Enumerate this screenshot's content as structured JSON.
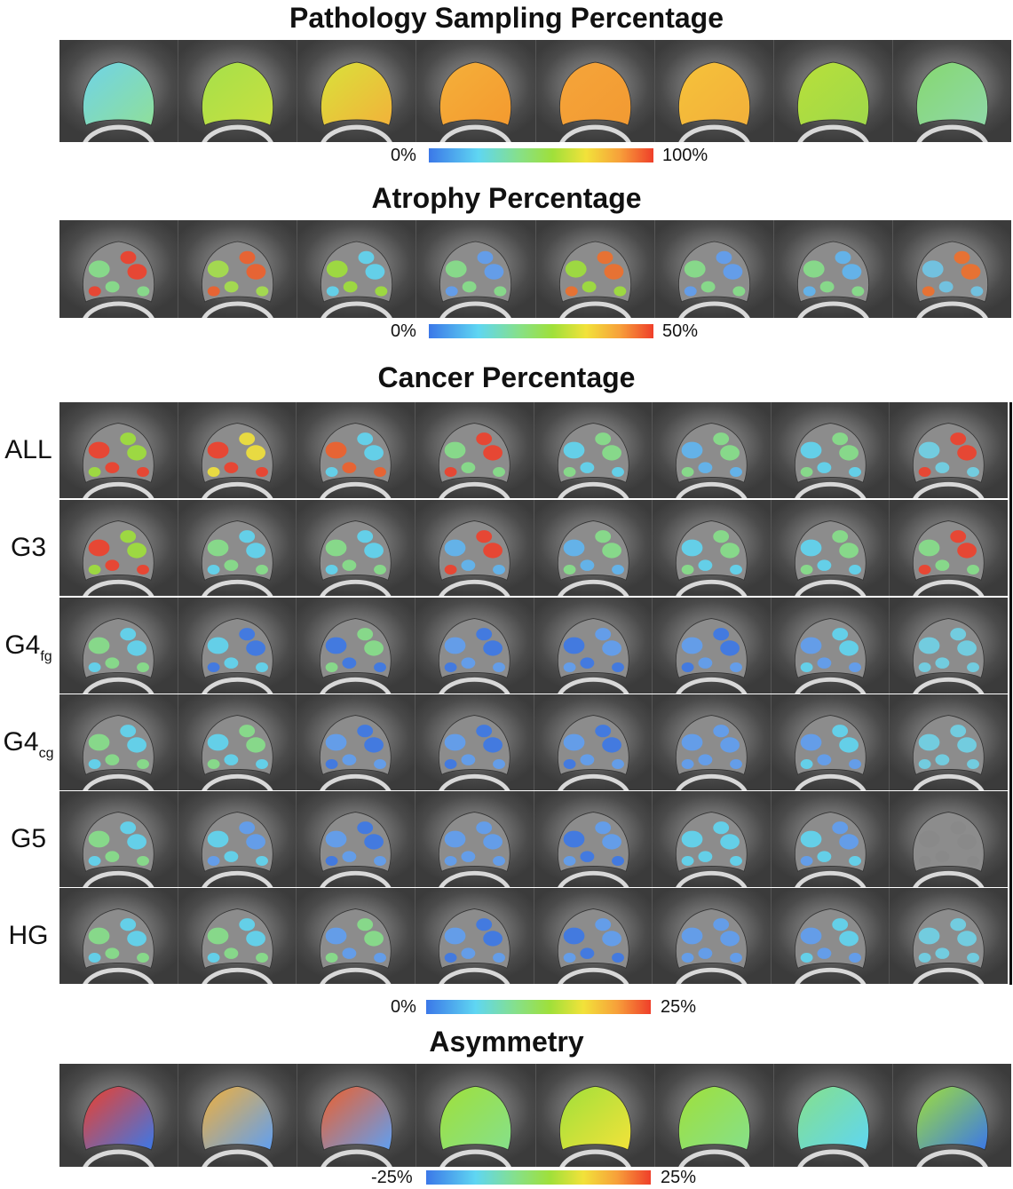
{
  "titles": {
    "pathology": "Pathology Sampling Percentage",
    "atrophy": "Atrophy Percentage",
    "cancer": "Cancer Percentage",
    "asymmetry": "Asymmetry"
  },
  "colorbars": {
    "pathology": {
      "min": "0%",
      "max": "100%"
    },
    "atrophy": {
      "min": "0%",
      "max": "50%"
    },
    "cancer": {
      "min": "0%",
      "max": "25%"
    },
    "asymmetry": {
      "min": "-25%",
      "max": "25%"
    }
  },
  "cancer_rows": [
    {
      "label": "ALL",
      "sub": ""
    },
    {
      "label": "G3",
      "sub": ""
    },
    {
      "label": "G4",
      "sub": "fg"
    },
    {
      "label": "G4",
      "sub": "cg"
    },
    {
      "label": "G5",
      "sub": ""
    },
    {
      "label": "HG",
      "sub": ""
    }
  ],
  "colors": {
    "blue": "#3b78e8",
    "cyan": "#5fd6f2",
    "green": "#86e08a",
    "lime": "#9fe03a",
    "yellow": "#f2e23a",
    "orange": "#f7a03a",
    "red": "#ef3f2a"
  },
  "maps": {
    "pathology": [
      [
        "#6fd3e8",
        "#8fdf9a"
      ],
      [
        "#a5e04a",
        "#c8e040"
      ],
      [
        "#d9e23a",
        "#f2b23a"
      ],
      [
        "#f4b03a",
        "#f49a2f"
      ],
      [
        "#f5a53a",
        "#f29a32"
      ],
      [
        "#f6c23a",
        "#f2b03a"
      ],
      [
        "#b8e03a",
        "#9fd84a"
      ],
      [
        "#86d870",
        "#8fd8a8"
      ]
    ],
    "atrophy": [
      [
        "#86e08a",
        "#ef3f2a"
      ],
      [
        "#a5e04a",
        "#ef5f2a"
      ],
      [
        "#9fe03a",
        "#5fd6f2"
      ],
      [
        "#86e08a",
        "#5f9ff2"
      ],
      [
        "#9fe03a",
        "#ef6f2a"
      ],
      [
        "#86e08a",
        "#5f9ff2"
      ],
      [
        "#86e08a",
        "#5fb6f2"
      ],
      [
        "#6fc6e8",
        "#ef6f2a"
      ]
    ],
    "cancer": [
      [
        [
          "#ef3f2a",
          "#9fe03a"
        ],
        [
          "#ef3f2a",
          "#f2e23a"
        ],
        [
          "#ef5f2a",
          "#5fd6f2"
        ],
        [
          "#86e08a",
          "#ef3f2a"
        ],
        [
          "#5fd6f2",
          "#86e08a"
        ],
        [
          "#5fb6f2",
          "#86e08a"
        ],
        [
          "#5fd6f2",
          "#86e08a"
        ],
        [
          "#6fd3e8",
          "#ef3f2a"
        ]
      ],
      [
        [
          "#ef3f2a",
          "#9fe03a"
        ],
        [
          "#86e08a",
          "#5fd6f2"
        ],
        [
          "#86e08a",
          "#5fd6f2"
        ],
        [
          "#5fb6f2",
          "#ef3f2a"
        ],
        [
          "#5fb6f2",
          "#86e08a"
        ],
        [
          "#5fd6f2",
          "#86e08a"
        ],
        [
          "#5fd6f2",
          "#86e08a"
        ],
        [
          "#86e08a",
          "#ef3f2a"
        ]
      ],
      [
        [
          "#86e08a",
          "#5fd6f2"
        ],
        [
          "#5fd6f2",
          "#3b78e8"
        ],
        [
          "#3b78e8",
          "#86e08a"
        ],
        [
          "#5f9ff2",
          "#3b78e8"
        ],
        [
          "#3b78e8",
          "#5f9ff2"
        ],
        [
          "#5f9ff2",
          "#3b78e8"
        ],
        [
          "#5f9ff2",
          "#5fd6f2"
        ],
        [
          "#6fd3e8",
          "#6fd3e8"
        ]
      ],
      [
        [
          "#86e08a",
          "#5fd6f2"
        ],
        [
          "#5fd6f2",
          "#86e08a"
        ],
        [
          "#5f9ff2",
          "#3b78e8"
        ],
        [
          "#5f9ff2",
          "#3b78e8"
        ],
        [
          "#5f9ff2",
          "#3b78e8"
        ],
        [
          "#5f9ff2",
          "#5f9ff2"
        ],
        [
          "#5f9ff2",
          "#5fd6f2"
        ],
        [
          "#6fd3e8",
          "#6fd3e8"
        ]
      ],
      [
        [
          "#86e08a",
          "#5fd6f2"
        ],
        [
          "#5fd6f2",
          "#5f9ff2"
        ],
        [
          "#5f9ff2",
          "#3b78e8"
        ],
        [
          "#5f9ff2",
          "#5f9ff2"
        ],
        [
          "#3b78e8",
          "#5f9ff2"
        ],
        [
          "#5fd6f2",
          "#5fd6f2"
        ],
        [
          "#5fd6f2",
          "#5f9ff2"
        ],
        [
          "#888888",
          "#888888"
        ]
      ],
      [
        [
          "#86e08a",
          "#5fd6f2"
        ],
        [
          "#86e08a",
          "#5fd6f2"
        ],
        [
          "#5f9ff2",
          "#86e08a"
        ],
        [
          "#5f9ff2",
          "#3b78e8"
        ],
        [
          "#3b78e8",
          "#5f9ff2"
        ],
        [
          "#5f9ff2",
          "#5f9ff2"
        ],
        [
          "#5f9ff2",
          "#5fd6f2"
        ],
        [
          "#6fd3e8",
          "#6fd3e8"
        ]
      ]
    ],
    "asymmetry": [
      [
        "#ef3f2a",
        "#3b78e8"
      ],
      [
        "#f2b03a",
        "#5f9ff2"
      ],
      [
        "#ef5f2a",
        "#5f9ff2"
      ],
      [
        "#9fe03a",
        "#86e08a"
      ],
      [
        "#9fe03a",
        "#f2e23a"
      ],
      [
        "#9fe03a",
        "#86e08a"
      ],
      [
        "#86e08a",
        "#5fd6f2"
      ],
      [
        "#9fe03a",
        "#3b78e8"
      ]
    ]
  }
}
